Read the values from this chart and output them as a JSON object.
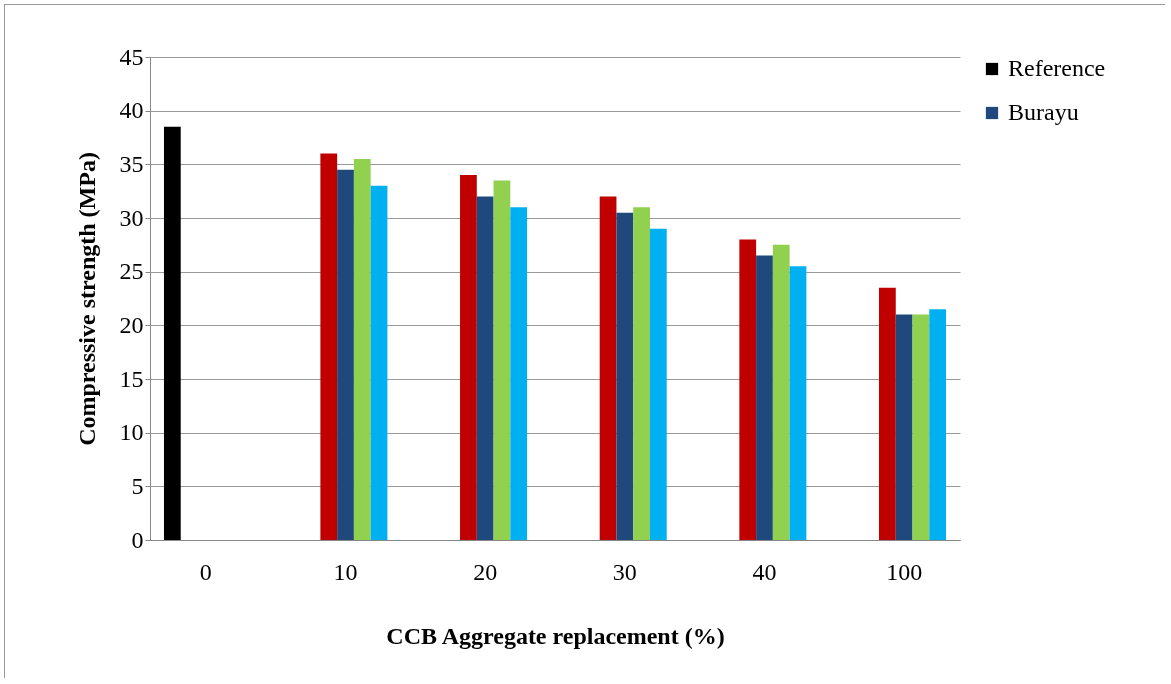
{
  "chart_data": {
    "type": "bar",
    "xlabel": "CCB Aggregate replacement (%)",
    "ylabel": "Compressive strength (MPa)",
    "categories": [
      "0",
      "10",
      "20",
      "30",
      "40",
      "100"
    ],
    "series": [
      {
        "name": "Reference",
        "color": "#000000",
        "values": [
          38.5,
          null,
          null,
          null,
          null,
          null
        ]
      },
      {
        "color": "#c00000",
        "values": [
          null,
          36,
          34,
          32,
          28,
          23.5
        ]
      },
      {
        "name": "Burayu",
        "color": "#1f497d",
        "values": [
          null,
          34.5,
          32,
          30.5,
          26.5,
          21
        ]
      },
      {
        "color": "#92d050",
        "values": [
          null,
          35.5,
          33.5,
          31,
          27.5,
          21
        ]
      },
      {
        "color": "#00b0f0",
        "values": [
          null,
          33,
          31,
          29,
          25.5,
          21.5
        ]
      }
    ],
    "ylim": [
      0,
      45
    ],
    "yticks": [
      0,
      5,
      10,
      15,
      20,
      25,
      30,
      35,
      40,
      45
    ],
    "grid": "y",
    "legend": "right"
  }
}
